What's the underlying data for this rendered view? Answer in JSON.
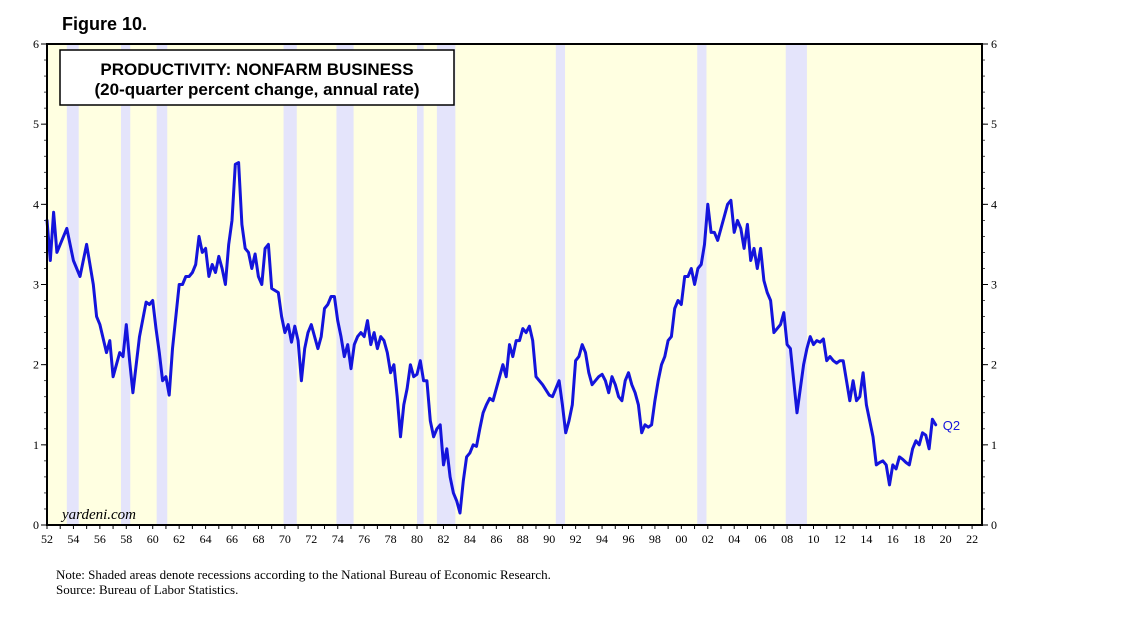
{
  "figure_label": "Figure 10.",
  "notes": {
    "note": "Note: Shaded areas denote recessions according to the National Bureau of Economic Research.",
    "source": "Source: Bureau of Labor Statistics."
  },
  "colors": {
    "background": "#FFFFE1",
    "recession": "#E4E4FB",
    "line": "#1414DC"
  },
  "chart_data": {
    "type": "line",
    "title": "PRODUCTIVITY: NONFARM BUSINESS",
    "subtitle": "(20-quarter percent change, annual rate)",
    "watermark": "yardeni.com",
    "last_point_label": "Q2",
    "xlabel": "",
    "ylabel": "",
    "xlim": [
      1952.0,
      2022.75
    ],
    "ylim": [
      0,
      6
    ],
    "y_ticks": [
      0,
      1,
      2,
      3,
      4,
      5,
      6
    ],
    "x_tick_labels": [
      "52",
      "54",
      "56",
      "58",
      "60",
      "62",
      "64",
      "66",
      "68",
      "70",
      "72",
      "74",
      "76",
      "78",
      "80",
      "82",
      "84",
      "86",
      "88",
      "90",
      "92",
      "94",
      "96",
      "98",
      "00",
      "02",
      "04",
      "06",
      "08",
      "10",
      "12",
      "14",
      "16",
      "18",
      "20",
      "22"
    ],
    "recessions": [
      [
        1953.5,
        1954.4
      ],
      [
        1957.6,
        1958.3
      ],
      [
        1960.3,
        1961.1
      ],
      [
        1969.9,
        1970.9
      ],
      [
        1973.9,
        1975.2
      ],
      [
        1980.0,
        1980.5
      ],
      [
        1981.5,
        1982.9
      ],
      [
        1990.5,
        1991.2
      ],
      [
        2001.2,
        2001.9
      ],
      [
        2007.9,
        2009.5
      ]
    ],
    "series": [
      {
        "name": "Productivity: Nonfarm Business (20-quarter % change, a.r.)",
        "x": [
          1952.0,
          1952.25,
          1952.5,
          1952.75,
          1953.0,
          1953.5,
          1954.0,
          1954.5,
          1955.0,
          1955.5,
          1955.75,
          1956.0,
          1956.5,
          1956.75,
          1957.0,
          1957.25,
          1957.5,
          1957.75,
          1958.0,
          1958.25,
          1958.5,
          1959.0,
          1959.5,
          1959.75,
          1960.0,
          1960.25,
          1960.5,
          1960.75,
          1961.0,
          1961.25,
          1961.5,
          1962.0,
          1962.25,
          1962.5,
          1962.75,
          1963.0,
          1963.25,
          1963.5,
          1963.75,
          1964.0,
          1964.25,
          1964.5,
          1964.75,
          1965.0,
          1965.25,
          1965.5,
          1965.75,
          1966.0,
          1966.25,
          1966.5,
          1966.75,
          1967.0,
          1967.25,
          1967.5,
          1967.75,
          1968.0,
          1968.25,
          1968.5,
          1968.75,
          1969.0,
          1969.5,
          1969.75,
          1970.0,
          1970.25,
          1970.5,
          1970.75,
          1971.0,
          1971.25,
          1971.5,
          1971.75,
          1972.0,
          1972.5,
          1972.75,
          1973.0,
          1973.25,
          1973.5,
          1973.75,
          1974.0,
          1974.25,
          1974.5,
          1974.75,
          1975.0,
          1975.25,
          1975.5,
          1975.75,
          1976.0,
          1976.25,
          1976.5,
          1976.75,
          1977.0,
          1977.25,
          1977.5,
          1977.75,
          1978.0,
          1978.25,
          1978.5,
          1978.75,
          1979.0,
          1979.25,
          1979.5,
          1979.75,
          1980.0,
          1980.25,
          1980.5,
          1980.75,
          1981.0,
          1981.25,
          1981.5,
          1981.75,
          1982.0,
          1982.25,
          1982.5,
          1982.75,
          1983.0,
          1983.25,
          1983.5,
          1983.75,
          1984.0,
          1984.25,
          1984.5,
          1984.75,
          1985.0,
          1985.25,
          1985.5,
          1985.75,
          1986.0,
          1986.25,
          1986.5,
          1986.75,
          1987.0,
          1987.25,
          1987.5,
          1987.75,
          1988.0,
          1988.25,
          1988.5,
          1988.75,
          1989.0,
          1989.5,
          1990.0,
          1990.25,
          1990.5,
          1990.75,
          1991.0,
          1991.25,
          1991.5,
          1991.75,
          1992.0,
          1992.25,
          1992.5,
          1992.75,
          1993.0,
          1993.25,
          1993.5,
          1993.75,
          1994.0,
          1994.25,
          1994.5,
          1994.75,
          1995.0,
          1995.25,
          1995.5,
          1995.75,
          1996.0,
          1996.25,
          1996.5,
          1996.75,
          1997.0,
          1997.25,
          1997.5,
          1997.75,
          1998.0,
          1998.25,
          1998.5,
          1998.75,
          1999.0,
          1999.25,
          1999.5,
          1999.75,
          2000.0,
          2000.25,
          2000.5,
          2000.75,
          2001.0,
          2001.25,
          2001.5,
          2001.75,
          2002.0,
          2002.25,
          2002.5,
          2002.75,
          2003.0,
          2003.25,
          2003.5,
          2003.75,
          2004.0,
          2004.25,
          2004.5,
          2004.75,
          2005.0,
          2005.25,
          2005.5,
          2005.75,
          2006.0,
          2006.25,
          2006.5,
          2006.75,
          2007.0,
          2007.25,
          2007.5,
          2007.75,
          2008.0,
          2008.25,
          2008.5,
          2008.75,
          2009.0,
          2009.25,
          2009.5,
          2009.75,
          2010.0,
          2010.25,
          2010.5,
          2010.75,
          2011.0,
          2011.25,
          2011.5,
          2011.75,
          2012.0,
          2012.25,
          2012.5,
          2012.75,
          2013.0,
          2013.25,
          2013.5,
          2013.75,
          2014.0,
          2014.25,
          2014.5,
          2014.75,
          2015.0,
          2015.25,
          2015.5,
          2015.75,
          2016.0,
          2016.25,
          2016.5,
          2016.75,
          2017.0,
          2017.25,
          2017.5,
          2017.75,
          2018.0,
          2018.25,
          2018.5,
          2018.75,
          2019.0,
          2019.25
        ],
        "values": [
          3.8,
          3.3,
          3.9,
          3.4,
          3.5,
          3.7,
          3.3,
          3.1,
          3.5,
          3.0,
          2.6,
          2.5,
          2.15,
          2.3,
          1.85,
          2.0,
          2.15,
          2.1,
          2.5,
          2.05,
          1.65,
          2.35,
          2.78,
          2.75,
          2.8,
          2.45,
          2.15,
          1.8,
          1.85,
          1.62,
          2.2,
          3.0,
          3.0,
          3.1,
          3.1,
          3.15,
          3.25,
          3.6,
          3.4,
          3.45,
          3.1,
          3.25,
          3.15,
          3.35,
          3.2,
          3.0,
          3.5,
          3.8,
          4.5,
          4.52,
          3.75,
          3.45,
          3.4,
          3.2,
          3.38,
          3.1,
          3.0,
          3.45,
          3.5,
          2.95,
          2.9,
          2.6,
          2.4,
          2.5,
          2.28,
          2.48,
          2.3,
          1.8,
          2.2,
          2.4,
          2.5,
          2.2,
          2.35,
          2.7,
          2.75,
          2.85,
          2.85,
          2.55,
          2.35,
          2.1,
          2.25,
          1.95,
          2.25,
          2.35,
          2.4,
          2.35,
          2.55,
          2.25,
          2.4,
          2.2,
          2.35,
          2.3,
          2.15,
          1.9,
          2.0,
          1.6,
          1.1,
          1.5,
          1.7,
          2.0,
          1.85,
          1.88,
          2.05,
          1.8,
          1.8,
          1.3,
          1.1,
          1.2,
          1.25,
          0.75,
          0.95,
          0.6,
          0.4,
          0.3,
          0.15,
          0.55,
          0.85,
          0.9,
          1.0,
          0.98,
          1.2,
          1.4,
          1.5,
          1.58,
          1.55,
          1.7,
          1.85,
          2.0,
          1.85,
          2.25,
          2.1,
          2.3,
          2.3,
          2.45,
          2.4,
          2.48,
          2.3,
          1.85,
          1.75,
          1.62,
          1.6,
          1.7,
          1.8,
          1.5,
          1.15,
          1.3,
          1.5,
          2.05,
          2.1,
          2.25,
          2.15,
          1.9,
          1.75,
          1.8,
          1.85,
          1.88,
          1.8,
          1.65,
          1.85,
          1.75,
          1.6,
          1.55,
          1.8,
          1.9,
          1.75,
          1.65,
          1.5,
          1.15,
          1.25,
          1.22,
          1.25,
          1.55,
          1.8,
          2.0,
          2.1,
          2.3,
          2.35,
          2.7,
          2.8,
          2.75,
          3.1,
          3.1,
          3.2,
          3.0,
          3.2,
          3.25,
          3.5,
          4.0,
          3.65,
          3.65,
          3.55,
          3.7,
          3.85,
          4.0,
          4.05,
          3.65,
          3.8,
          3.7,
          3.45,
          3.75,
          3.3,
          3.45,
          3.2,
          3.45,
          3.05,
          2.9,
          2.8,
          2.4,
          2.45,
          2.5,
          2.65,
          2.25,
          2.2,
          1.8,
          1.4,
          1.7,
          2.0,
          2.2,
          2.35,
          2.25,
          2.3,
          2.28,
          2.32,
          2.05,
          2.1,
          2.05,
          2.02,
          2.05,
          2.05,
          1.8,
          1.55,
          1.8,
          1.55,
          1.6,
          1.9,
          1.5,
          1.3,
          1.1,
          0.75,
          0.78,
          0.8,
          0.75,
          0.5,
          0.75,
          0.7,
          0.85,
          0.82,
          0.78,
          0.75,
          0.95,
          1.05,
          1.0,
          1.15,
          1.12,
          0.95,
          1.32,
          1.25
        ]
      }
    ]
  }
}
